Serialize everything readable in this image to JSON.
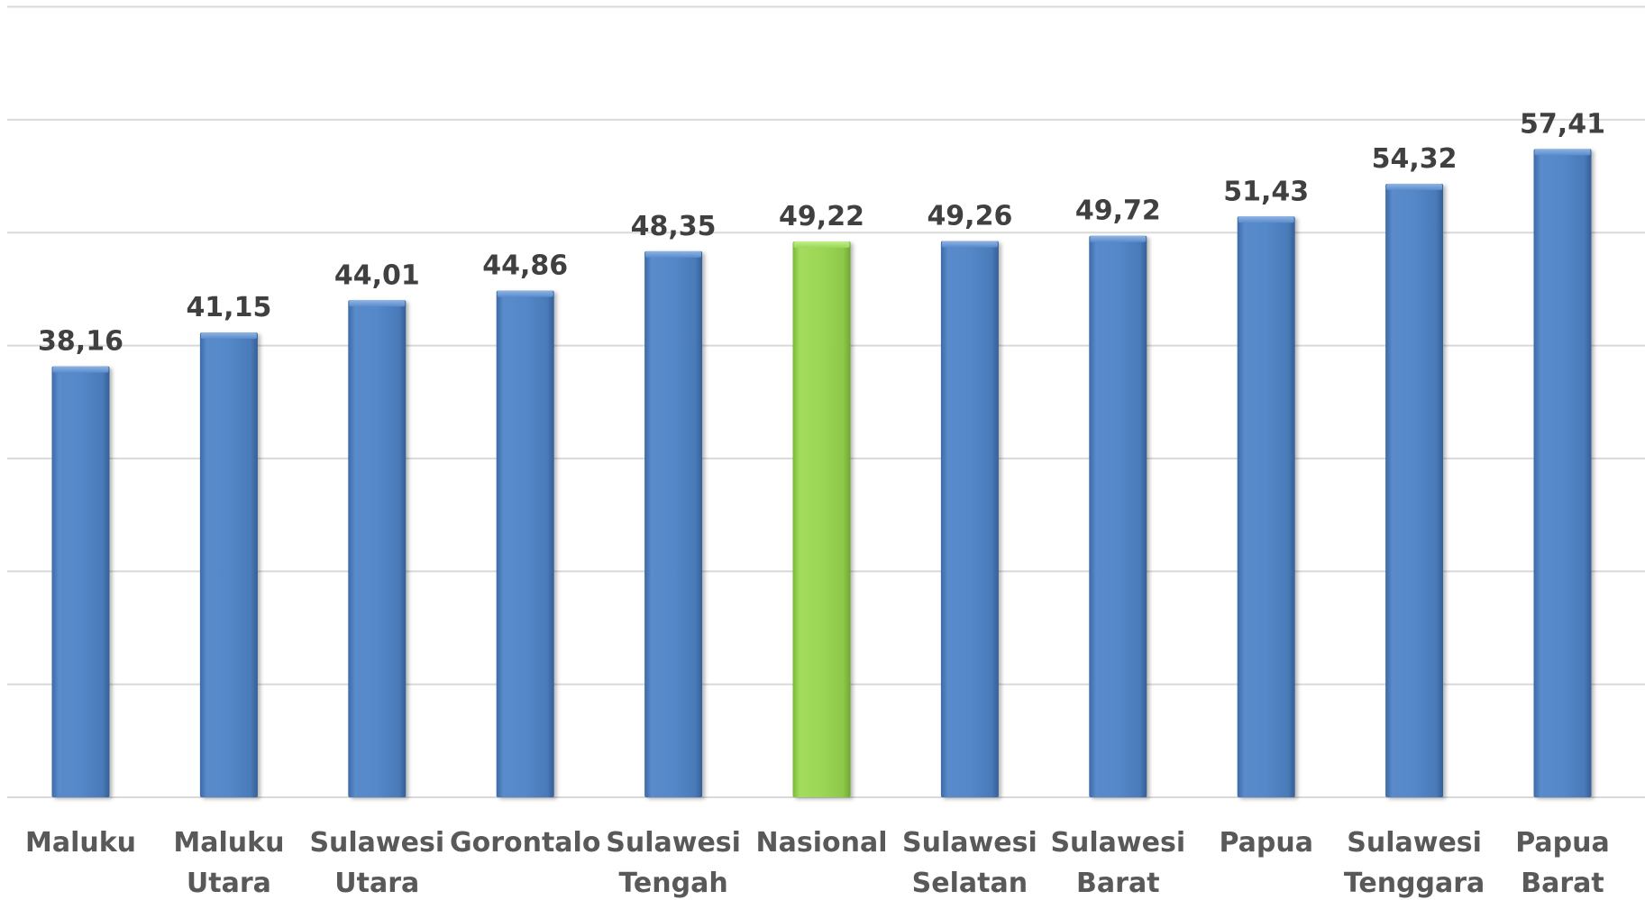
{
  "chart_data": {
    "type": "bar",
    "categories": [
      [
        "Maluku"
      ],
      [
        "Maluku",
        "Utara"
      ],
      [
        "Sulawesi",
        "Utara"
      ],
      [
        "Gorontalo"
      ],
      [
        "Sulawesi",
        "Tengah"
      ],
      [
        "Nasional"
      ],
      [
        "Sulawesi",
        "Selatan"
      ],
      [
        "Sulawesi",
        "Barat"
      ],
      [
        "Papua"
      ],
      [
        "Sulawesi",
        "Tenggara"
      ],
      [
        "Papua",
        "Barat"
      ]
    ],
    "values": [
      38.16,
      41.15,
      44.01,
      44.86,
      48.35,
      49.22,
      49.26,
      49.72,
      51.43,
      54.32,
      57.41
    ],
    "data_labels": [
      "38,16",
      "41,15",
      "44,01",
      "44,86",
      "48,35",
      "49,22",
      "49,26",
      "49,72",
      "51,43",
      "54,32",
      "57,41"
    ],
    "highlight_index": 5,
    "ylim": [
      0,
      70
    ],
    "grid": true,
    "gridline_step": 10,
    "title": "",
    "xlabel": "",
    "ylabel": "",
    "colors": {
      "bar": "#4f81bd",
      "bar_highlight": "#92d050",
      "gridline": "#d9d9d9",
      "data_label": "#404040",
      "category_label": "#595959"
    }
  }
}
